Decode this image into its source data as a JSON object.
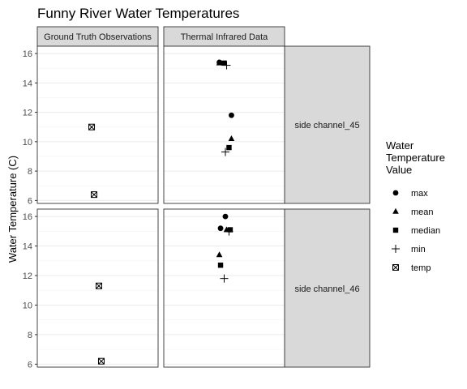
{
  "chart_data": {
    "type": "scatter",
    "title": "Funny River Water Temperatures",
    "xlabel": "",
    "ylabel": "Water Temperature (C)",
    "ylim": [
      5.8,
      16.5
    ],
    "yticks": [
      6,
      8,
      10,
      12,
      14,
      16
    ],
    "grid": true,
    "legend": {
      "title_lines": [
        "Water",
        "Temperature",
        "Value"
      ],
      "placement": "right",
      "entries": [
        {
          "key": "max",
          "label": "max",
          "shape": "circle"
        },
        {
          "key": "mean",
          "label": "mean",
          "shape": "triangle"
        },
        {
          "key": "median",
          "label": "median",
          "shape": "square"
        },
        {
          "key": "min",
          "label": "min",
          "shape": "plus"
        },
        {
          "key": "temp",
          "label": "temp",
          "shape": "boxcross"
        }
      ]
    },
    "columns": [
      "Ground Truth Observations",
      "Thermal Infrared Data"
    ],
    "rows": [
      "side channel_45",
      "side channel_46"
    ],
    "panels": [
      {
        "row": 0,
        "col": 0,
        "points": [
          {
            "series": "temp",
            "x": 0.45,
            "y": 11.0
          },
          {
            "series": "temp",
            "x": 0.47,
            "y": 6.4
          }
        ]
      },
      {
        "row": 0,
        "col": 1,
        "points": [
          {
            "series": "max",
            "x": 0.46,
            "y": 15.4
          },
          {
            "series": "mean",
            "x": 0.46,
            "y": 15.35
          },
          {
            "series": "median",
            "x": 0.5,
            "y": 15.35
          },
          {
            "series": "min",
            "x": 0.52,
            "y": 15.2
          },
          {
            "series": "max",
            "x": 0.56,
            "y": 11.8
          },
          {
            "series": "mean",
            "x": 0.56,
            "y": 10.2
          },
          {
            "series": "median",
            "x": 0.54,
            "y": 9.6
          },
          {
            "series": "min",
            "x": 0.51,
            "y": 9.3
          }
        ]
      },
      {
        "row": 1,
        "col": 0,
        "points": [
          {
            "series": "temp",
            "x": 0.51,
            "y": 11.3
          },
          {
            "series": "temp",
            "x": 0.53,
            "y": 6.2
          }
        ]
      },
      {
        "row": 1,
        "col": 1,
        "points": [
          {
            "series": "max",
            "x": 0.51,
            "y": 16.0
          },
          {
            "series": "max",
            "x": 0.47,
            "y": 15.2
          },
          {
            "series": "mean",
            "x": 0.52,
            "y": 15.1
          },
          {
            "series": "median",
            "x": 0.55,
            "y": 15.1
          },
          {
            "series": "min",
            "x": 0.54,
            "y": 14.98
          },
          {
            "series": "mean",
            "x": 0.46,
            "y": 13.4
          },
          {
            "series": "median",
            "x": 0.47,
            "y": 12.7
          },
          {
            "series": "min",
            "x": 0.5,
            "y": 11.8
          }
        ]
      }
    ]
  }
}
